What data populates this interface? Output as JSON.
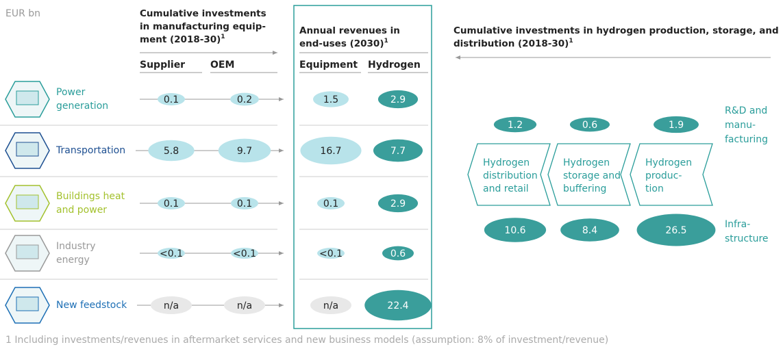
{
  "unit_label": "EUR bn",
  "headers": [
    {
      "lines": [
        "Cumulative investments",
        "in manufacturing equip-",
        "ment (2018-30)"
      ],
      "sup": "1"
    },
    {
      "lines": [
        "Annual revenues in",
        "end-uses (2030)"
      ],
      "sup": "1"
    },
    {
      "lines": [
        "Cumulative investments in hydrogen production, storage, and",
        "distribution (2018-30)"
      ],
      "sup": "1"
    }
  ],
  "columns": [
    "Supplier",
    "OEM",
    "Equipment",
    "Hydrogen"
  ],
  "rows": [
    {
      "label": [
        "Power",
        "generation"
      ],
      "values": [
        "0.1",
        "0.2",
        "1.5",
        "2.9"
      ]
    },
    {
      "label": [
        "Transportation"
      ],
      "values": [
        "5.8",
        "9.7",
        "16.7",
        "7.7"
      ]
    },
    {
      "label": [
        "Buildings heat",
        "and power"
      ],
      "values": [
        "0.1",
        "0.1",
        "0.1",
        "2.9"
      ]
    },
    {
      "label": [
        "Industry",
        "energy"
      ],
      "values": [
        "<0.1",
        "<0.1",
        "<0.1",
        "0.6"
      ]
    },
    {
      "label": [
        "New feedstock"
      ],
      "values": [
        "n/a",
        "n/a",
        "n/a",
        "22.4"
      ]
    }
  ],
  "value_chain": {
    "stages": [
      {
        "lines": [
          "Hydrogen",
          "distribution",
          "and retail"
        ],
        "rd": "1.2",
        "infrastructure": "10.6"
      },
      {
        "lines": [
          "Hydrogen",
          "storage and",
          "buffering"
        ],
        "rd": "0.6",
        "infrastructure": "8.4"
      },
      {
        "lines": [
          "Hydrogen",
          "produc-",
          "tion"
        ],
        "rd": "1.9",
        "infrastructure": "26.5"
      }
    ],
    "rd_label": [
      "R&D and",
      "manu-",
      "facturing"
    ],
    "infrastructure_label": [
      "Infra-",
      "structure"
    ]
  },
  "footnote": "1 Including investments/revenues in aftermarket services and new business models (assumption: 8% of investment/revenue)"
}
